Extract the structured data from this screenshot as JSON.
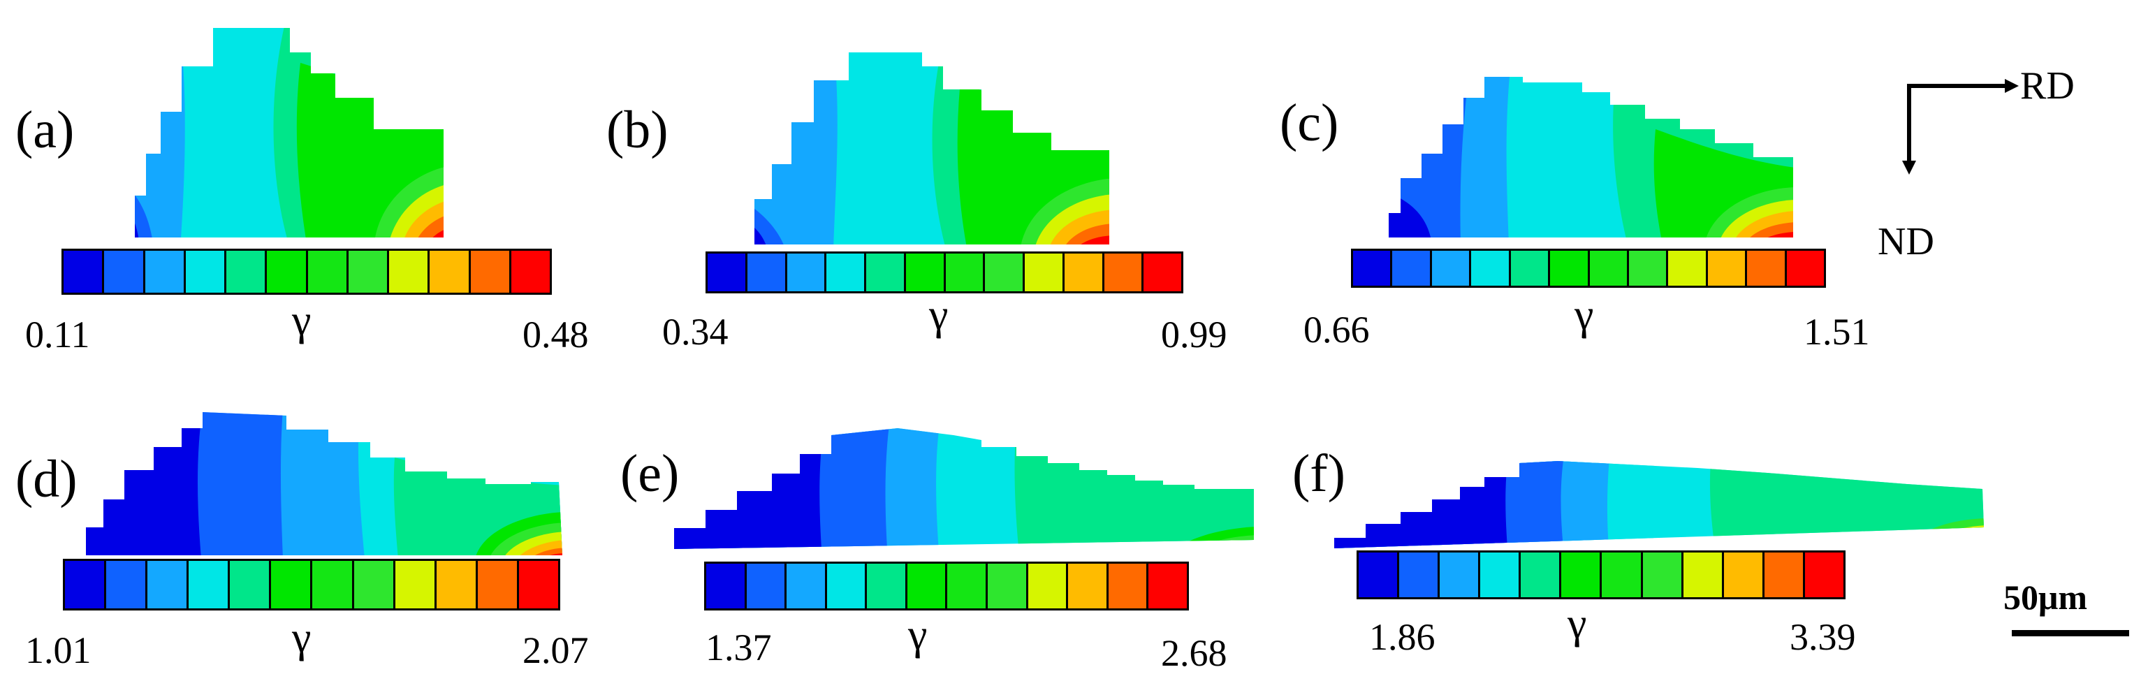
{
  "colormap": [
    "#0000e6",
    "#0f62ff",
    "#14a8ff",
    "#00e6e6",
    "#00e68a",
    "#00e600",
    "#14e614",
    "#2ee62e",
    "#d6f500",
    "#ffbb00",
    "#ff6a00",
    "#ff0000"
  ],
  "panels": [
    {
      "label": "(a)",
      "min": "0.11",
      "max": "0.48",
      "symbol": "γ"
    },
    {
      "label": "(b)",
      "min": "0.34",
      "max": "0.99",
      "symbol": "γ"
    },
    {
      "label": "(c)",
      "min": "0.66",
      "max": "1.51",
      "symbol": "γ"
    },
    {
      "label": "(d)",
      "min": "1.01",
      "max": "2.07",
      "symbol": "γ"
    },
    {
      "label": "(e)",
      "min": "1.37",
      "max": "2.68",
      "symbol": "γ"
    },
    {
      "label": "(f)",
      "min": "1.86",
      "max": "3.39",
      "symbol": "γ"
    }
  ],
  "axes": {
    "rd": "RD",
    "nd": "ND"
  },
  "scale_bar": {
    "label": "50μm"
  }
}
